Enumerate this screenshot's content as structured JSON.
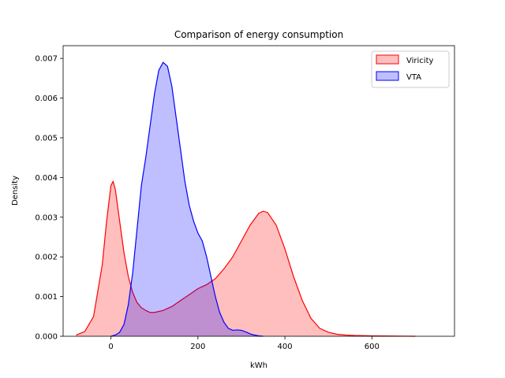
{
  "chart_data": {
    "type": "area",
    "title": "Comparison of energy consumption",
    "xlabel": "kWh",
    "ylabel": "Density",
    "xlim": [
      -110,
      790
    ],
    "ylim": [
      0,
      0.00732
    ],
    "xticks": [
      0,
      200,
      400,
      600
    ],
    "xtick_labels": [
      "0",
      "200",
      "400",
      "600"
    ],
    "yticks": [
      0,
      0.001,
      0.002,
      0.003,
      0.004,
      0.005,
      0.006,
      0.007
    ],
    "ytick_labels": [
      "0.000",
      "0.001",
      "0.002",
      "0.003",
      "0.004",
      "0.005",
      "0.006",
      "0.007"
    ],
    "grid": false,
    "legend_position": "top-right",
    "series": [
      {
        "name": "Viricity",
        "color": "#ff0000",
        "fill": "#ff0000",
        "x": [
          -80,
          -60,
          -40,
          -20,
          -10,
          0,
          5,
          10,
          20,
          30,
          40,
          50,
          60,
          70,
          80,
          90,
          100,
          120,
          140,
          160,
          180,
          200,
          220,
          240,
          260,
          280,
          300,
          320,
          340,
          350,
          360,
          380,
          400,
          420,
          440,
          460,
          480,
          500,
          520,
          540,
          560,
          600,
          650,
          700
        ],
        "y": [
          3e-05,
          0.00012,
          0.0005,
          0.0018,
          0.0029,
          0.0038,
          0.0039,
          0.0037,
          0.0029,
          0.0021,
          0.0015,
          0.0011,
          0.00085,
          0.00072,
          0.00065,
          0.0006,
          0.0006,
          0.00065,
          0.00075,
          0.0009,
          0.00105,
          0.0012,
          0.0013,
          0.00145,
          0.0017,
          0.002,
          0.0024,
          0.0028,
          0.0031,
          0.00315,
          0.00312,
          0.0028,
          0.0022,
          0.0015,
          0.0009,
          0.00045,
          0.0002,
          0.0001,
          5e-05,
          3e-05,
          2e-05,
          1e-05,
          5e-06,
          0.0
        ]
      },
      {
        "name": "VTA",
        "color": "#0000ff",
        "fill": "#0000ff",
        "x": [
          0,
          10,
          20,
          30,
          40,
          50,
          60,
          70,
          80,
          90,
          100,
          110,
          120,
          130,
          140,
          150,
          160,
          170,
          180,
          190,
          200,
          210,
          220,
          230,
          240,
          250,
          260,
          270,
          280,
          290,
          300,
          310,
          320,
          330,
          340,
          350
        ],
        "y": [
          0.0,
          3e-05,
          0.0001,
          0.0003,
          0.0008,
          0.0016,
          0.0027,
          0.0038,
          0.0045,
          0.0053,
          0.0061,
          0.0067,
          0.0069,
          0.0068,
          0.0063,
          0.0055,
          0.0047,
          0.0039,
          0.0033,
          0.0029,
          0.0026,
          0.0024,
          0.002,
          0.0015,
          0.001,
          0.0006,
          0.00035,
          0.0002,
          0.00015,
          0.00016,
          0.00015,
          0.00011,
          6e-05,
          3e-05,
          1e-05,
          0.0
        ]
      }
    ]
  }
}
